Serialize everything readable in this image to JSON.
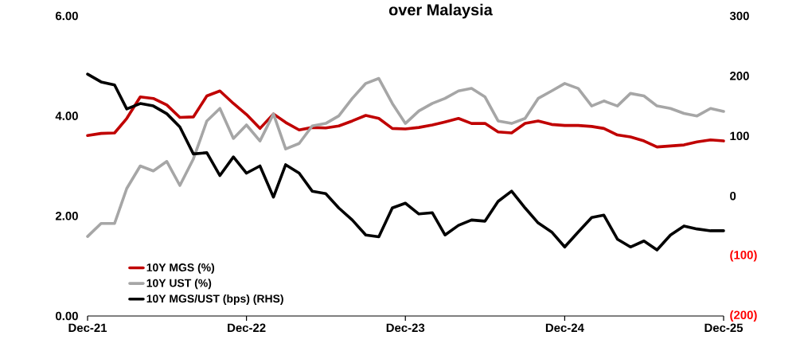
{
  "chart_data": {
    "type": "line",
    "title": "over Malaysia",
    "x": [
      "2021-12-01",
      "2022-01-01",
      "2022-02-01",
      "2022-03-01",
      "2022-04-01",
      "2022-05-01",
      "2022-06-01",
      "2022-07-01",
      "2022-08-01",
      "2022-09-01",
      "2022-10-01",
      "2022-11-01",
      "2022-12-01",
      "2023-01-01",
      "2023-02-01",
      "2023-03-01",
      "2023-04-01",
      "2023-05-01",
      "2023-06-01",
      "2023-07-01",
      "2023-08-01",
      "2023-09-01",
      "2023-10-01",
      "2023-11-01",
      "2023-12-01",
      "2024-01-01",
      "2024-02-01",
      "2024-03-01",
      "2024-04-01",
      "2024-05-01",
      "2024-06-01",
      "2024-07-01",
      "2024-08-01",
      "2024-09-01",
      "2024-10-01",
      "2024-11-01",
      "2024-12-01",
      "2025-01-01",
      "2025-02-01",
      "2025-03-01",
      "2025-04-01",
      "2025-05-01",
      "2025-06-01",
      "2025-07-01",
      "2025-08-01",
      "2025-09-01",
      "2025-10-01",
      "2025-11-01",
      "2025-12-01"
    ],
    "series": [
      {
        "name": "10Y MGS (%)",
        "color": "#c00000",
        "values": [
          3.61,
          3.65,
          3.66,
          3.95,
          4.38,
          4.35,
          4.22,
          3.97,
          3.98,
          4.4,
          4.5,
          4.25,
          4.03,
          3.75,
          4.04,
          3.87,
          3.72,
          3.77,
          3.76,
          3.8,
          3.9,
          4.01,
          3.95,
          3.75,
          3.74,
          3.77,
          3.82,
          3.88,
          3.95,
          3.85,
          3.85,
          3.68,
          3.66,
          3.85,
          3.9,
          3.83,
          3.81,
          3.81,
          3.79,
          3.75,
          3.62,
          3.58,
          3.5,
          3.38,
          3.4,
          3.42,
          3.48,
          3.52,
          3.5
        ]
      },
      {
        "name": "10Y UST (%)",
        "color": "#a6a6a6",
        "values": [
          1.59,
          1.85,
          1.85,
          2.55,
          3.0,
          2.9,
          3.09,
          2.61,
          3.14,
          3.9,
          4.15,
          3.55,
          3.82,
          3.5,
          4.04,
          3.34,
          3.45,
          3.8,
          3.85,
          4.0,
          4.35,
          4.65,
          4.75,
          4.25,
          3.85,
          4.1,
          4.25,
          4.35,
          4.5,
          4.55,
          4.38,
          3.9,
          3.85,
          3.95,
          4.35,
          4.5,
          4.65,
          4.55,
          4.2,
          4.3,
          4.2,
          4.45,
          4.4,
          4.2,
          4.15,
          4.05,
          4.0,
          4.15,
          4.09
        ]
      },
      {
        "name": "10Y MGS/UST (bps) (RHS)",
        "color": "#000000",
        "axis": "y2",
        "values": [
          203,
          190,
          185,
          145,
          154,
          150,
          137,
          115,
          70,
          72,
          34,
          65,
          38,
          50,
          -2,
          52,
          38,
          8,
          4,
          -20,
          -40,
          -65,
          -68,
          -20,
          -12,
          -30,
          -28,
          -65,
          -49,
          -40,
          -42,
          -9,
          8,
          -20,
          -45,
          -60,
          -85,
          -60,
          -36,
          -32,
          -72,
          -85,
          -75,
          -90,
          -65,
          -50,
          -55,
          -58,
          -58
        ]
      }
    ],
    "xlim": [
      "2021-12-01",
      "2025-12-01"
    ],
    "xticks": [
      {
        "value": "2021-12-01",
        "label": "Dec-21"
      },
      {
        "value": "2022-12-01",
        "label": "Dec-22"
      },
      {
        "value": "2023-12-01",
        "label": "Dec-23"
      },
      {
        "value": "2024-12-01",
        "label": "Dec-24"
      },
      {
        "value": "2025-12-01",
        "label": "Dec-25"
      }
    ],
    "ylim": [
      0,
      6
    ],
    "yticks": [
      {
        "value": 0,
        "label": "0.00"
      },
      {
        "value": 2,
        "label": "2.00"
      },
      {
        "value": 4,
        "label": "4.00"
      },
      {
        "value": 6,
        "label": "6.00"
      }
    ],
    "y2lim": [
      -200,
      300
    ],
    "y2ticks": [
      {
        "value": -200,
        "label": "(200)"
      },
      {
        "value": -100,
        "label": "(100)"
      },
      0,
      100,
      200,
      300
    ],
    "legend": "bottom left",
    "grid": false,
    "marker": "none",
    "line_style": "solid"
  }
}
